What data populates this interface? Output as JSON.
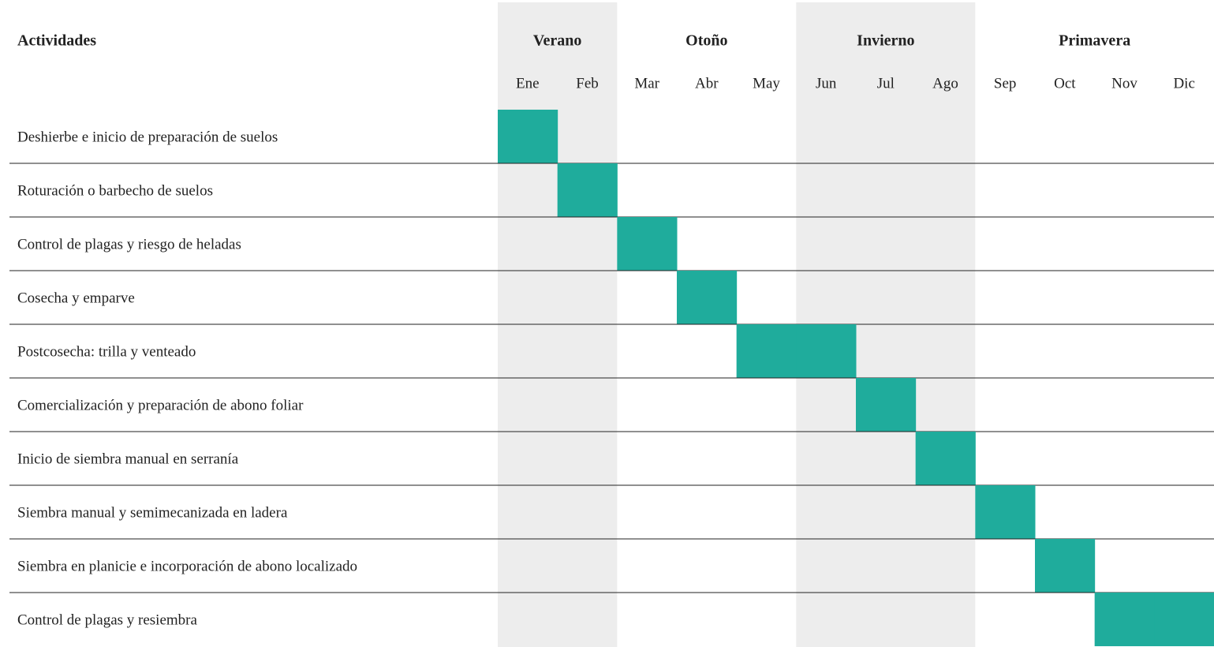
{
  "header": {
    "title": "Actividades"
  },
  "seasons": [
    {
      "name": "Verano",
      "months": [
        "Ene",
        "Feb"
      ],
      "shaded": true
    },
    {
      "name": "Otoño",
      "months": [
        "Mar",
        "Abr",
        "May"
      ],
      "shaded": false
    },
    {
      "name": "Invierno",
      "months": [
        "Jun",
        "Jul",
        "Ago"
      ],
      "shaded": true
    },
    {
      "name": "Primavera",
      "months": [
        "Sep",
        "Oct",
        "Nov",
        "Dic"
      ],
      "shaded": false
    }
  ],
  "activities": [
    {
      "label": "Deshierbe e inicio de preparación de suelos",
      "months": [
        "Ene"
      ]
    },
    {
      "label": "Roturación o barbecho de suelos",
      "months": [
        "Feb"
      ]
    },
    {
      "label": "Control de plagas y riesgo de heladas",
      "months": [
        "Mar"
      ]
    },
    {
      "label": "Cosecha y emparve",
      "months": [
        "Abr"
      ]
    },
    {
      "label": "Postcosecha: trilla y venteado",
      "months": [
        "May",
        "Jun"
      ]
    },
    {
      "label": "Comercialización y preparación de abono foliar",
      "months": [
        "Jul"
      ]
    },
    {
      "label": "Inicio de siembra manual en serranía",
      "months": [
        "Ago"
      ]
    },
    {
      "label": "Siembra manual y semimecanizada en ladera",
      "months": [
        "Sep"
      ]
    },
    {
      "label": "Siembra en planicie e incorporación de abono localizado",
      "months": [
        "Oct"
      ]
    },
    {
      "label": "Control de plagas y resiembra",
      "months": [
        "Nov",
        "Dic"
      ]
    }
  ],
  "bar_color": "#1fac9c",
  "shade_color": "#ededed"
}
